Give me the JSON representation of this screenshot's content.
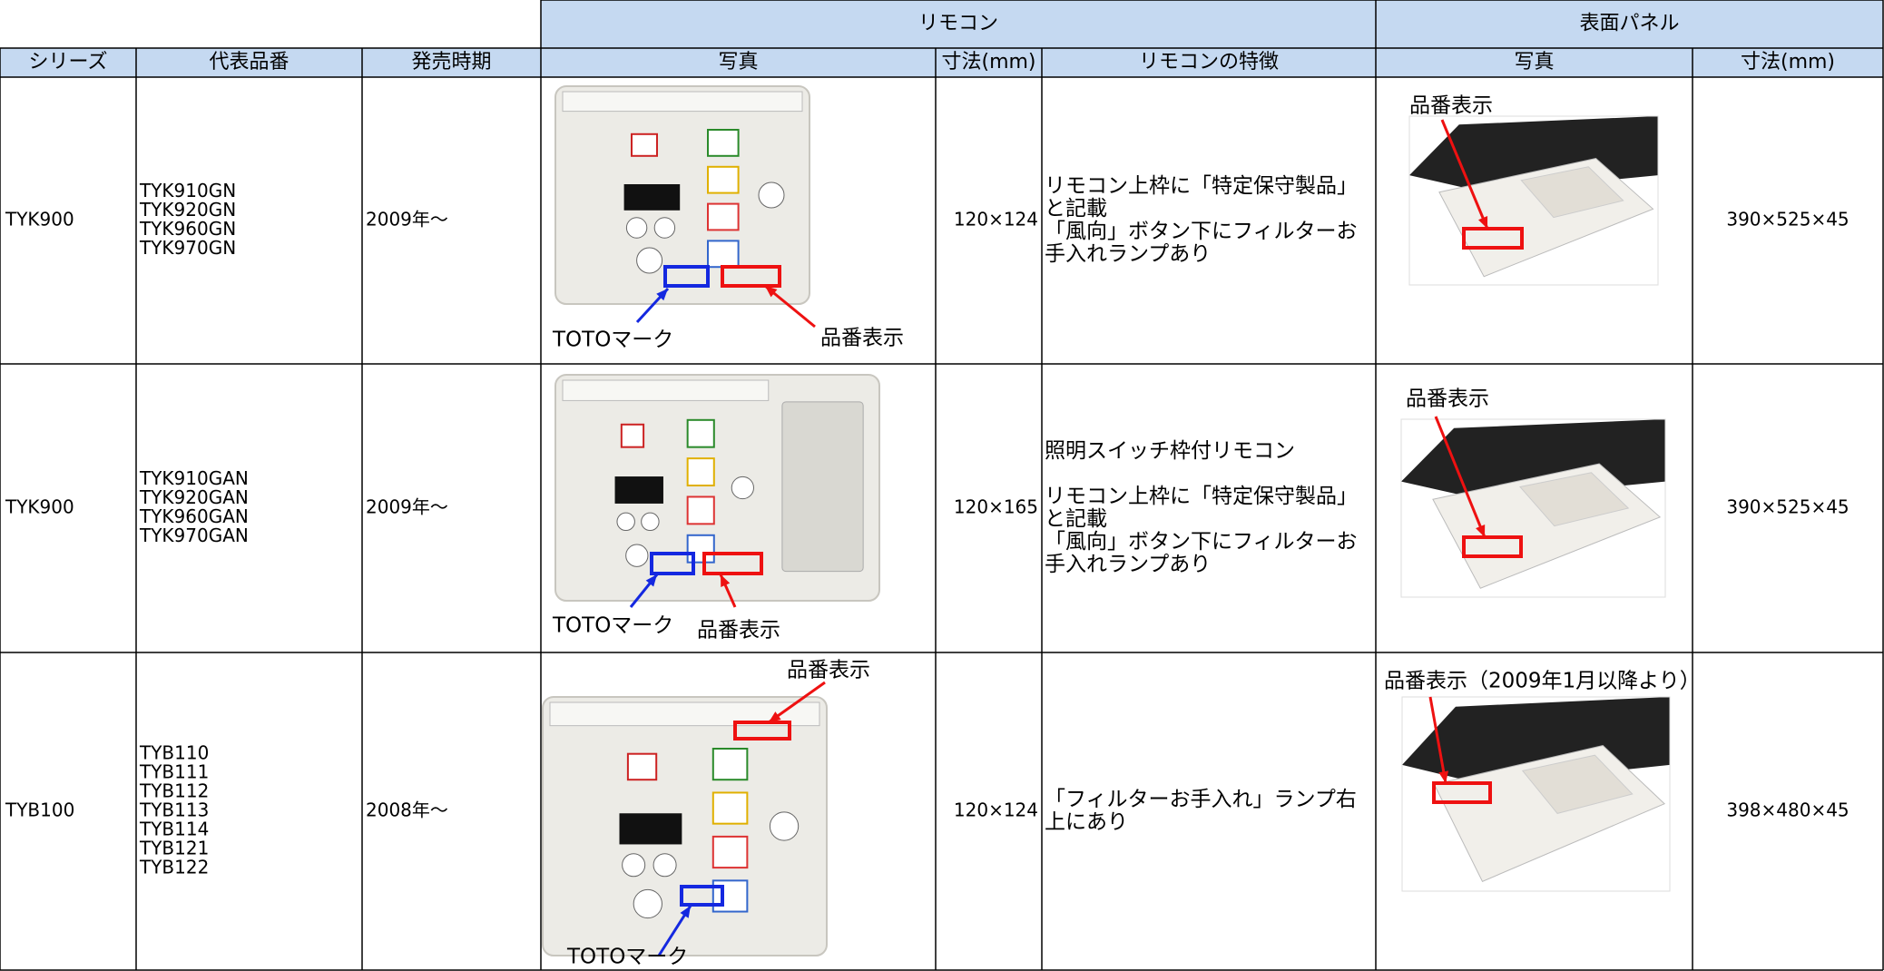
{
  "header": {
    "groups": [
      "リモコン",
      "表面パネル"
    ],
    "columns": [
      "シリーズ",
      "代表品番",
      "発売時期",
      "写真",
      "寸法(mm)",
      "リモコンの特徴",
      "写真",
      "寸法(mm)"
    ]
  },
  "rows": [
    {
      "series": "TYK900",
      "models": [
        "TYK910GN",
        "TYK920GN",
        "TYK960GN",
        "TYK970GN"
      ],
      "released": "2009年～",
      "remote_labels": {
        "toto": "TOTOマーク",
        "model": "品番表示"
      },
      "remote_size": "120×124",
      "features": [
        [
          "リモコン上枠に「特定保守製品」",
          "と記載",
          "「風向」ボタン下にフィルターお",
          "手入れランプあり"
        ]
      ],
      "panel_label": "品番表示",
      "panel_size": "390×525×45"
    },
    {
      "series": "TYK900",
      "models": [
        "TYK910GAN",
        "TYK920GAN",
        "TYK960GAN",
        "TYK970GAN"
      ],
      "released": "2009年～",
      "remote_labels": {
        "toto": "TOTOマーク",
        "model": "品番表示"
      },
      "remote_size": "120×165",
      "features": [
        [
          "照明スイッチ枠付リモコン"
        ],
        [
          "リモコン上枠に「特定保守製品」",
          "と記載",
          "「風向」ボタン下にフィルターお",
          "手入れランプあり"
        ]
      ],
      "panel_label": "品番表示",
      "panel_size": "390×525×45"
    },
    {
      "series": "TYB100",
      "models": [
        "TYB110",
        "TYB111",
        "TYB112",
        "TYB113",
        "TYB114",
        "TYB121",
        "TYB122"
      ],
      "released": "2008年～",
      "remote_labels": {
        "toto": "TOTOマーク",
        "model": "品番表示"
      },
      "remote_size": "120×124",
      "features": [
        [
          "「フィルターお手入れ」ランプ右",
          "上にあり"
        ]
      ],
      "panel_label": "品番表示（2009年1月以降より）",
      "panel_size": "398×480×45"
    }
  ]
}
